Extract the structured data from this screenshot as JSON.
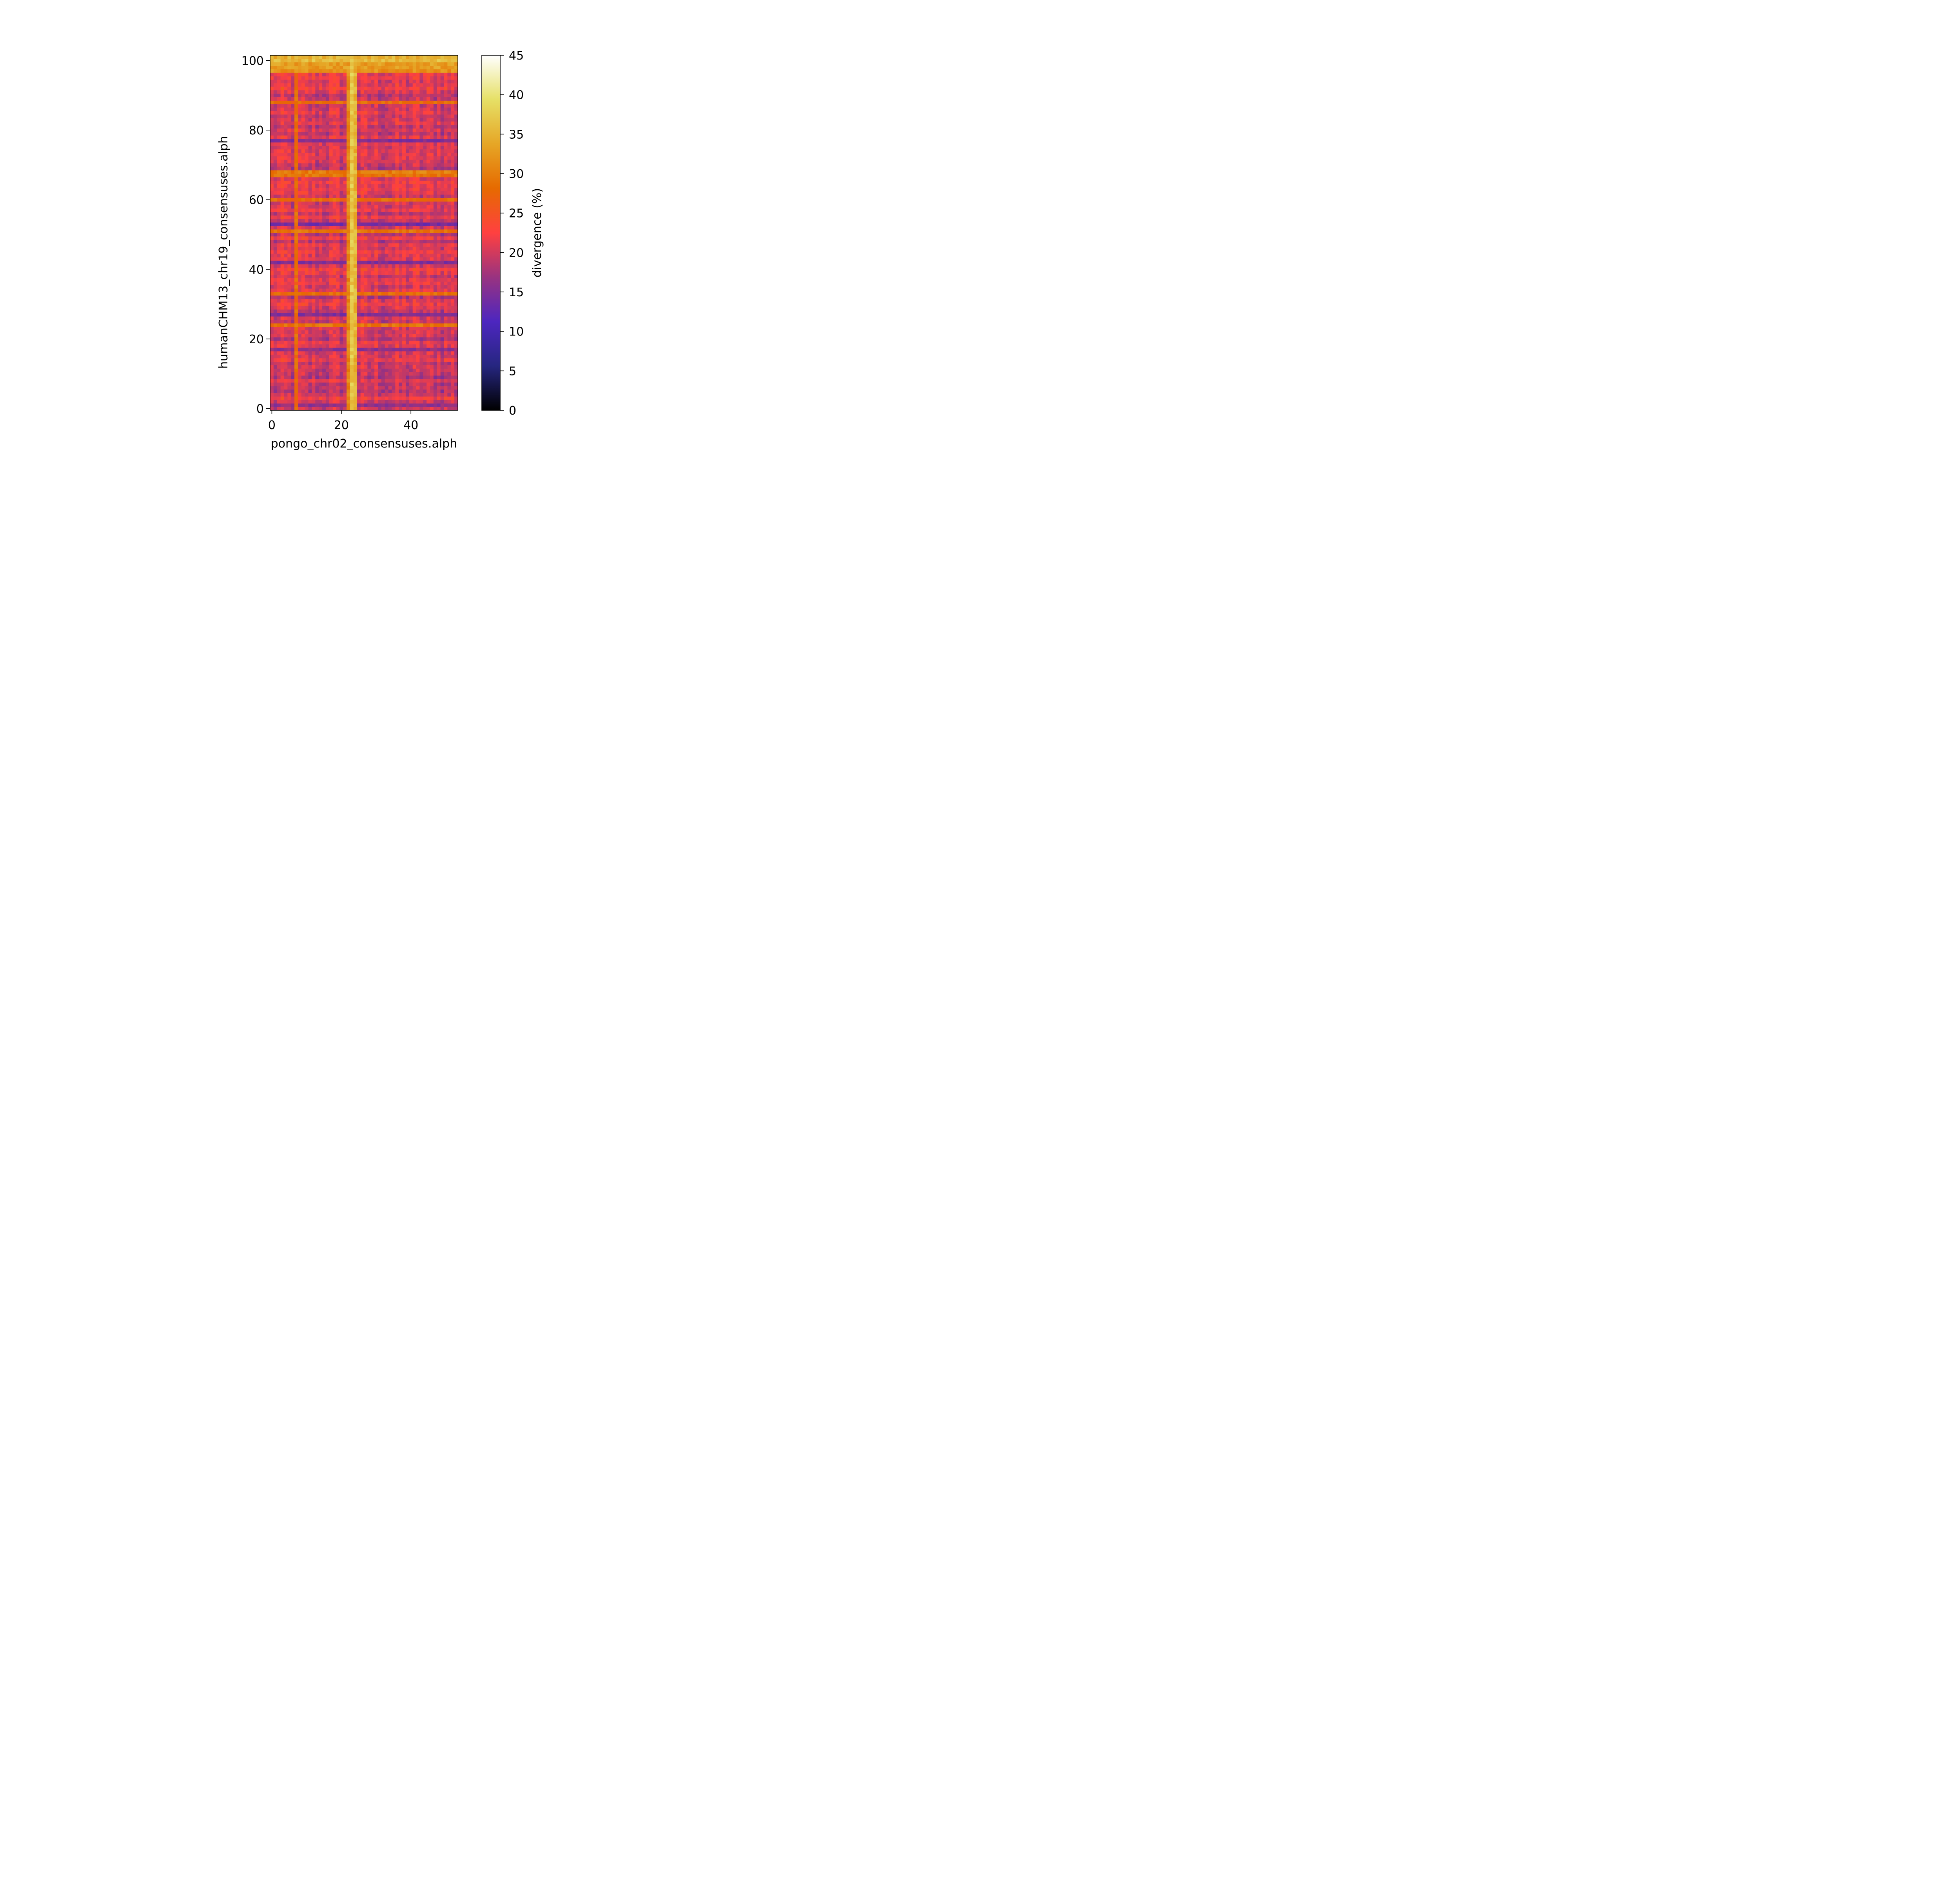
{
  "chart_data": {
    "type": "heatmap",
    "xlabel": "pongo_chr02_consensuses.alph",
    "ylabel": "humanCHM13_chr19_consensuses.alph",
    "n_cols": 54,
    "n_rows": 102,
    "xlim": [
      -0.5,
      53.5
    ],
    "ylim": [
      -0.5,
      101.5
    ],
    "x_ticks": [
      0,
      20,
      40
    ],
    "y_ticks": [
      0,
      20,
      40,
      60,
      80,
      100
    ],
    "colormap": "CMRmap",
    "colorbar": {
      "label": "divergence (%)",
      "min": 0,
      "max": 45,
      "ticks": [
        0,
        5,
        10,
        15,
        20,
        25,
        30,
        35,
        40,
        45
      ]
    },
    "value_structure": {
      "background_range": [
        14,
        26
      ],
      "bright_columns": [
        {
          "index": 23,
          "value": 37
        },
        {
          "index": 24,
          "value": 35
        },
        {
          "index": 22,
          "value": 31
        },
        {
          "index": 7,
          "value": 28
        }
      ],
      "bright_rows": [
        {
          "index": 100,
          "value": 36
        },
        {
          "index": 101,
          "value": 35
        },
        {
          "index": 99,
          "value": 33
        },
        {
          "index": 98,
          "value": 33
        },
        {
          "index": 97,
          "value": 32
        },
        {
          "index": 68,
          "value": 30
        },
        {
          "index": 67,
          "value": 29
        },
        {
          "index": 51,
          "value": 29
        },
        {
          "index": 33,
          "value": 28
        },
        {
          "index": 24,
          "value": 29
        },
        {
          "index": 88,
          "value": 28
        },
        {
          "index": 60,
          "value": 28
        }
      ],
      "dark_rows": [
        {
          "index": 53,
          "value": 14
        },
        {
          "index": 42,
          "value": 15
        },
        {
          "index": 27,
          "value": 15
        },
        {
          "index": 77,
          "value": 15
        },
        {
          "index": 17,
          "value": 16
        },
        {
          "index": 1,
          "value": 16
        }
      ]
    }
  }
}
